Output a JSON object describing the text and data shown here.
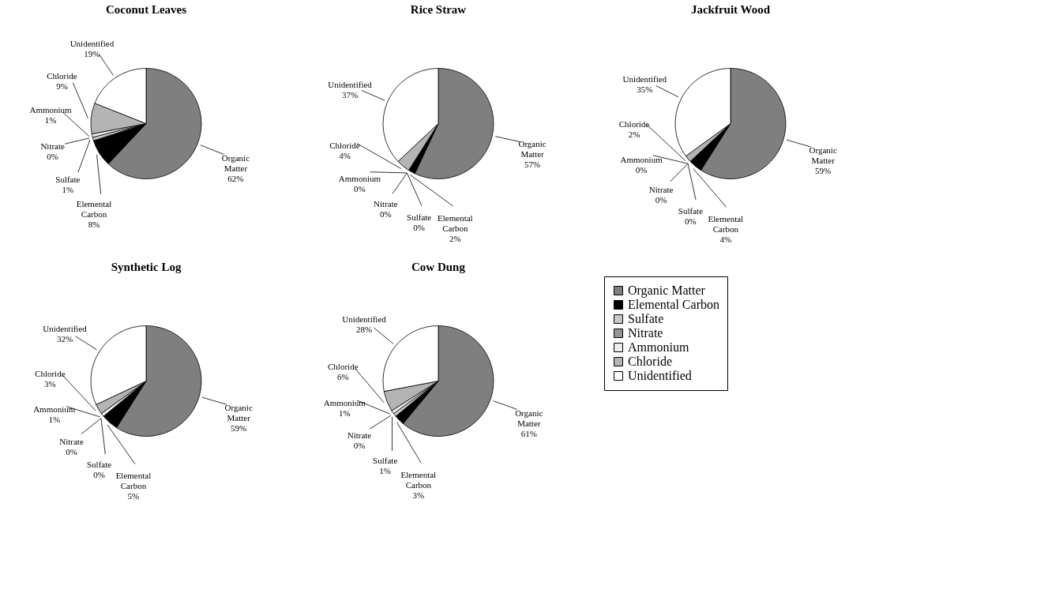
{
  "chart_data": [
    {
      "type": "pie",
      "title": "Coconut Leaves",
      "categories": [
        "Organic Matter",
        "Elemental Carbon",
        "Sulfate",
        "Nitrate",
        "Ammonium",
        "Chloride",
        "Unidentified"
      ],
      "values": [
        62,
        8,
        1,
        0,
        1,
        9,
        19
      ],
      "value_labels": [
        "62%",
        "8%",
        "1%",
        "0%",
        "1%",
        "9%",
        "19%"
      ],
      "colors": [
        "#7f7f7f",
        "#000000",
        "#c8c8c8",
        "#959595",
        "#eeeeee",
        "#b4b4b4",
        "#ffffff"
      ]
    },
    {
      "type": "pie",
      "title": "Rice Straw",
      "categories": [
        "Organic Matter",
        "Elemental Carbon",
        "Sulfate",
        "Nitrate",
        "Ammonium",
        "Chloride",
        "Unidentified"
      ],
      "values": [
        57,
        2,
        0,
        0,
        0,
        4,
        37
      ],
      "value_labels": [
        "57%",
        "2%",
        "0%",
        "0%",
        "0%",
        "4%",
        "37%"
      ],
      "colors": [
        "#7f7f7f",
        "#000000",
        "#c8c8c8",
        "#959595",
        "#eeeeee",
        "#b4b4b4",
        "#ffffff"
      ]
    },
    {
      "type": "pie",
      "title": "Jackfruit Wood",
      "categories": [
        "Organic Matter",
        "Elemental Carbon",
        "Sulfate",
        "Nitrate",
        "Ammonium",
        "Chloride",
        "Unidentified"
      ],
      "values": [
        59,
        4,
        0,
        0,
        0,
        2,
        35
      ],
      "value_labels": [
        "59%",
        "4%",
        "0%",
        "0%",
        "0%",
        "2%",
        "35%"
      ],
      "colors": [
        "#7f7f7f",
        "#000000",
        "#c8c8c8",
        "#959595",
        "#eeeeee",
        "#b4b4b4",
        "#ffffff"
      ]
    },
    {
      "type": "pie",
      "title": "Synthetic Log",
      "categories": [
        "Organic Matter",
        "Elemental Carbon",
        "Sulfate",
        "Nitrate",
        "Ammonium",
        "Chloride",
        "Unidentified"
      ],
      "values": [
        59,
        5,
        0,
        0,
        1,
        3,
        32
      ],
      "value_labels": [
        "59%",
        "5%",
        "0%",
        "0%",
        "1%",
        "3%",
        "32%"
      ],
      "colors": [
        "#7f7f7f",
        "#000000",
        "#c8c8c8",
        "#959595",
        "#eeeeee",
        "#b4b4b4",
        "#ffffff"
      ]
    },
    {
      "type": "pie",
      "title": "Cow Dung",
      "categories": [
        "Organic Matter",
        "Elemental Carbon",
        "Sulfate",
        "Nitrate",
        "Ammonium",
        "Chloride",
        "Unidentified"
      ],
      "values": [
        61,
        3,
        1,
        0,
        1,
        6,
        28
      ],
      "value_labels": [
        "61%",
        "3%",
        "1%",
        "0%",
        "1%",
        "6%",
        "28%"
      ],
      "colors": [
        "#7f7f7f",
        "#000000",
        "#c8c8c8",
        "#959595",
        "#eeeeee",
        "#b4b4b4",
        "#ffffff"
      ],
      "legend": "right"
    }
  ]
}
